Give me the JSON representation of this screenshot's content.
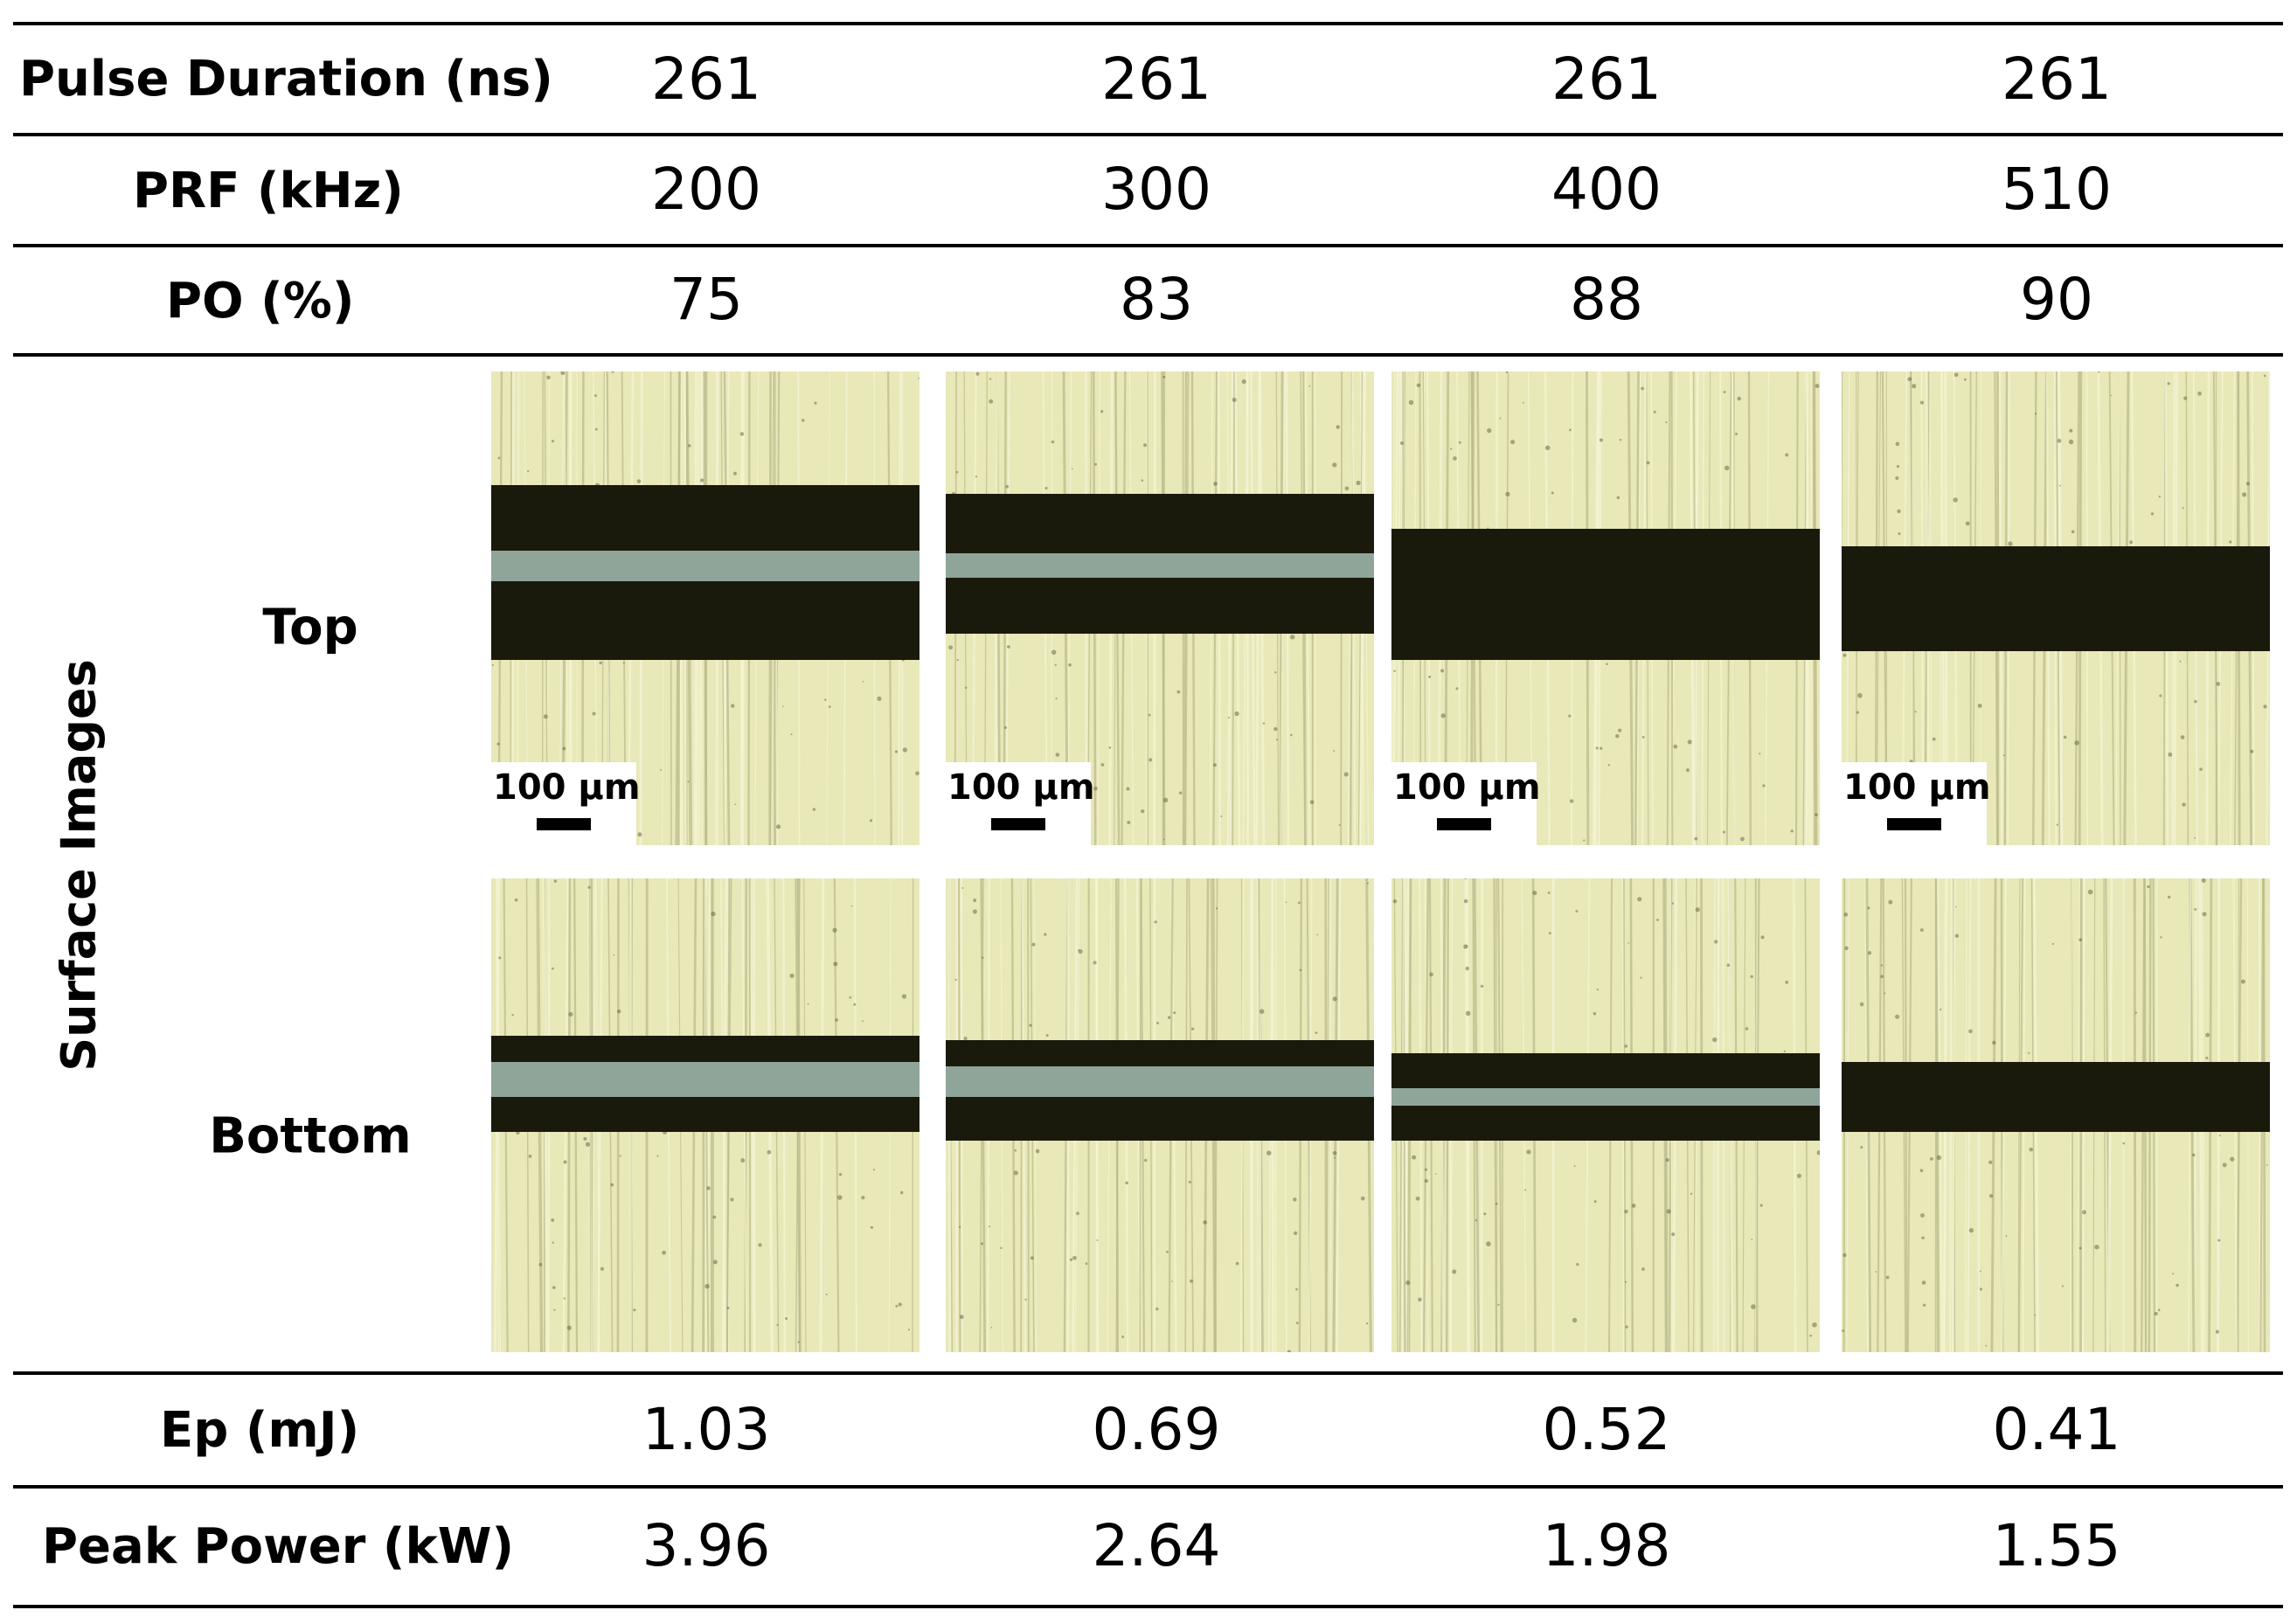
{
  "rows_top": [
    {
      "label": "Pulse Duration (ns)",
      "values": [
        "261",
        "261",
        "261",
        "261"
      ]
    },
    {
      "label": "PRF (kHz)",
      "values": [
        "200",
        "300",
        "400",
        "510"
      ]
    },
    {
      "label": "PO (%)",
      "values": [
        "75",
        "83",
        "88",
        "90"
      ]
    }
  ],
  "surface": {
    "group_label": "Surface Images",
    "top_label": "Top",
    "bottom_label": "Bottom",
    "scale_label": "100 µm"
  },
  "rows_bottom": [
    {
      "label": "Ep (mJ)",
      "values": [
        "1.03",
        "0.69",
        "0.52",
        "0.41"
      ]
    },
    {
      "label": "Peak Power (kW)",
      "values": [
        "3.96",
        "2.64",
        "1.98",
        "1.55"
      ]
    }
  ],
  "colors": {
    "background": "#e8e8b8",
    "kerf_dark": "#1a1a0c",
    "kerf_gap": "#8fa59a"
  }
}
